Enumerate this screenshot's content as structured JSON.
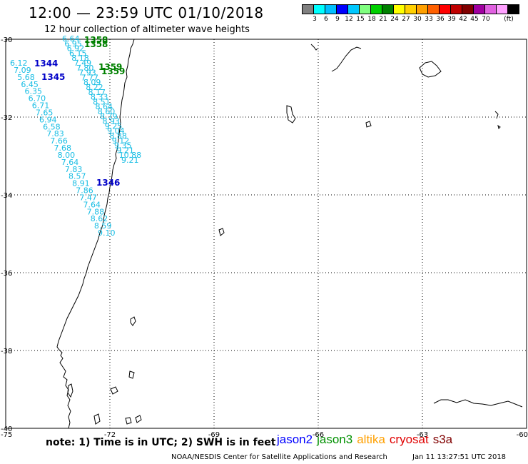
{
  "header": {
    "title": "12:00 — 23:59 UTC 01/10/2018",
    "subtitle": "12 hour collection of altimeter wave heights"
  },
  "colorbar": {
    "colors": [
      "#808080",
      "#00ffff",
      "#00bfff",
      "#0000ff",
      "#00c8ff",
      "#80ff80",
      "#00d000",
      "#008000",
      "#ffff00",
      "#ffd000",
      "#ffa000",
      "#ff6000",
      "#ff0000",
      "#c00000",
      "#800000",
      "#a000a0",
      "#e060e0",
      "#ffa0ff",
      "#000000"
    ],
    "labels": [
      "3",
      "6",
      "9",
      "12",
      "15",
      "18",
      "21",
      "24",
      "27",
      "30",
      "33",
      "36",
      "39",
      "42",
      "45",
      "70",
      "(ft)"
    ],
    "label_after_cell": [
      1,
      2,
      3,
      4,
      5,
      6,
      7,
      8,
      9,
      10,
      11,
      12,
      13,
      14,
      15,
      16,
      18
    ]
  },
  "map": {
    "lat_labels": [
      "-30",
      "-32",
      "-34",
      "-36",
      "-38",
      "-40"
    ],
    "lon_labels": [
      "-75",
      "-72",
      "-69",
      "-66",
      "-63",
      "-60"
    ],
    "tracks": [
      {
        "satellite": "jason2",
        "rev": "1344",
        "color": "#17bde4",
        "values": [
          "6.12",
          "7.09",
          "5.68",
          "6.45",
          "6.35",
          "6.70",
          "6.71",
          "7.65",
          "6.94",
          "6.58",
          "7.83",
          "7.66",
          "7.68",
          "8.00",
          "7.64",
          "7.83",
          "8.57",
          "8.91",
          "7.86",
          "7.47",
          "7.64",
          "7.88",
          "8.62",
          "8.59",
          "9.10"
        ]
      },
      {
        "satellite": "jason2",
        "rev": "1345",
        "color": "#17bde4",
        "values": [
          "6.64",
          "6.95",
          "6.92",
          "6.15",
          "8.18",
          "7.49",
          "7.80",
          "7.93",
          "7.77",
          "8.09",
          "8.22",
          "8.17",
          "8.33",
          "8.51",
          "8.64",
          "8.60",
          "8.79",
          "8.93",
          "9.25",
          "9.04",
          "8.88",
          "9.12",
          "9.35",
          "9.21",
          "10.88",
          "9.21"
        ]
      }
    ],
    "rev_labels": [
      {
        "text": "1344",
        "satellite": "jason2",
        "color": "#0000c8"
      },
      {
        "text": "1345",
        "satellite": "jason2",
        "color": "#0000c8"
      },
      {
        "text": "1346",
        "satellite": "jason2",
        "color": "#0000c8"
      },
      {
        "text": "1358",
        "satellite": "jason3",
        "color": "#008000"
      },
      {
        "text": "1358",
        "satellite": "jason3",
        "color": "#008000"
      },
      {
        "text": "1359",
        "satellite": "jason3",
        "color": "#008000"
      },
      {
        "text": "1359",
        "satellite": "jason3",
        "color": "#008000"
      }
    ]
  },
  "footer": {
    "note": "note:  1) Time is in UTC;  2) SWH is in feet",
    "legend": [
      {
        "name": "jason2",
        "color": "#0000ff"
      },
      {
        "name": "jason3",
        "color": "#009000"
      },
      {
        "name": "altika",
        "color": "#ffa000"
      },
      {
        "name": "cryosat",
        "color": "#e00000"
      },
      {
        "name": "s3a",
        "color": "#800000"
      }
    ],
    "credit": "NOAA/NESDIS Center for Satellite Applications and Research",
    "timestamp": "Jan 11 13:27:51 UTC 2018"
  }
}
